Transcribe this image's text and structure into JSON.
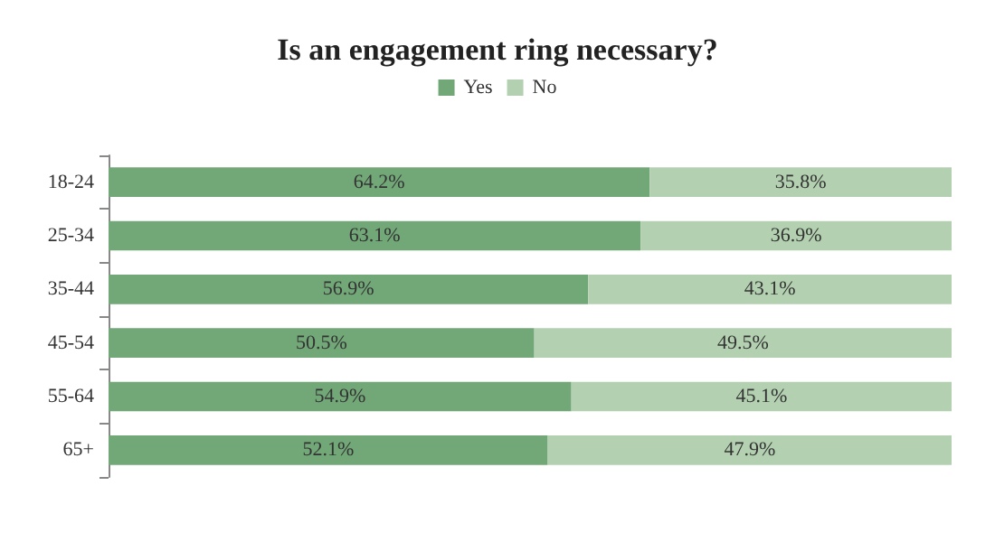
{
  "chart_data": {
    "type": "bar",
    "orientation": "horizontal",
    "stacked": true,
    "title": "Is an engagement ring necessary?",
    "categories": [
      "18-24",
      "25-34",
      "35-44",
      "45-54",
      "55-64",
      "65+"
    ],
    "series": [
      {
        "name": "Yes",
        "color": "#72a777",
        "values": [
          64.2,
          63.1,
          56.9,
          50.5,
          54.9,
          52.1
        ],
        "value_labels": [
          "64.2%",
          "63.1%",
          "56.9%",
          "50.5%",
          "54.9%",
          "52.1%"
        ]
      },
      {
        "name": "No",
        "color": "#b3d1b0",
        "values": [
          35.8,
          36.9,
          43.1,
          49.5,
          45.1,
          47.9
        ],
        "value_labels": [
          "35.8%",
          "36.9%",
          "43.1%",
          "49.5%",
          "45.1%",
          "47.9%"
        ]
      }
    ],
    "legend": "top"
  }
}
